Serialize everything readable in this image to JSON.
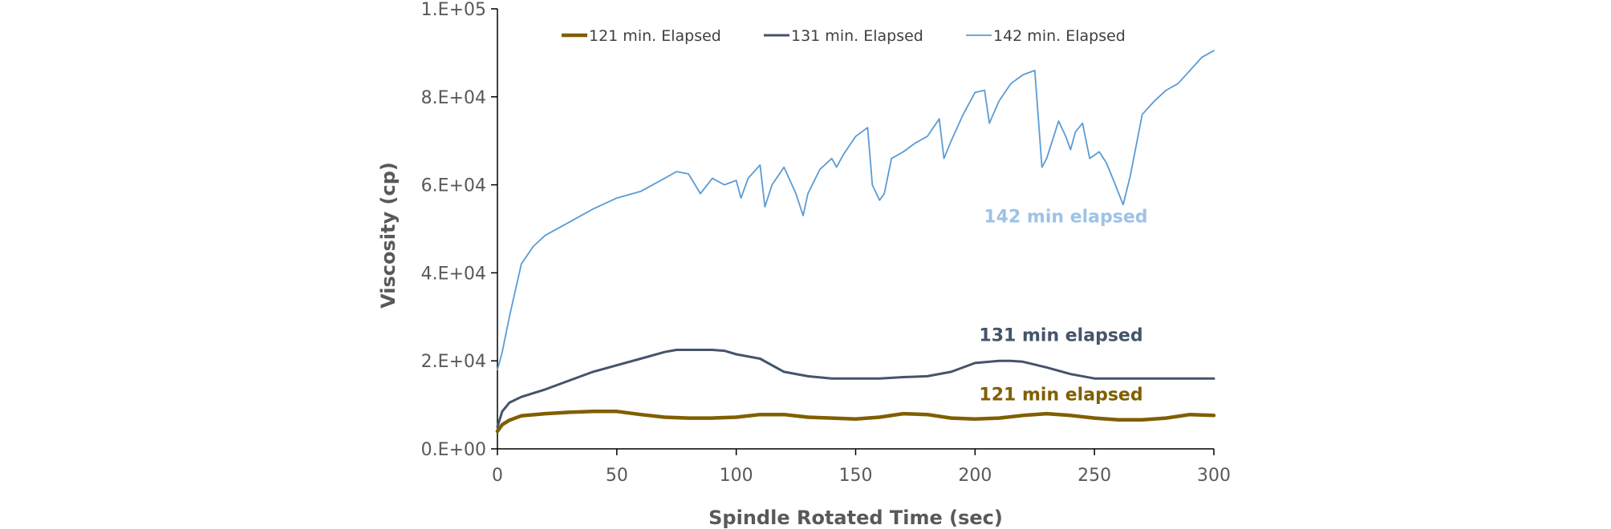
{
  "chart_data": {
    "type": "line",
    "title": "",
    "xlabel": "Spindle Rotated Time (sec)",
    "ylabel": "Viscosity (cp)",
    "xlim": [
      0,
      300
    ],
    "ylim": [
      0,
      100000
    ],
    "x_ticks": [
      0,
      50,
      100,
      150,
      200,
      250,
      300
    ],
    "x_tick_labels": [
      "0",
      "50",
      "100",
      "150",
      "200",
      "250",
      "300"
    ],
    "y_ticks": [
      0,
      20000,
      40000,
      60000,
      80000,
      100000
    ],
    "y_tick_labels": [
      "0.E+00",
      "2.E+04",
      "4.E+04",
      "6.E+04",
      "8.E+04",
      "1.E+05"
    ],
    "grid": false,
    "legend_position": "top",
    "series": [
      {
        "name": "121 min. Elapsed",
        "color": "#7f5f00",
        "stroke": "thick",
        "points": [
          [
            0,
            4000
          ],
          [
            2,
            5500
          ],
          [
            5,
            6500
          ],
          [
            10,
            7500
          ],
          [
            20,
            8000
          ],
          [
            30,
            8300
          ],
          [
            40,
            8500
          ],
          [
            50,
            8500
          ],
          [
            60,
            7800
          ],
          [
            70,
            7200
          ],
          [
            80,
            7000
          ],
          [
            90,
            7000
          ],
          [
            100,
            7200
          ],
          [
            110,
            7800
          ],
          [
            120,
            7800
          ],
          [
            130,
            7200
          ],
          [
            140,
            7000
          ],
          [
            150,
            6800
          ],
          [
            160,
            7200
          ],
          [
            170,
            8000
          ],
          [
            180,
            7800
          ],
          [
            190,
            7000
          ],
          [
            200,
            6800
          ],
          [
            210,
            7000
          ],
          [
            220,
            7600
          ],
          [
            230,
            8000
          ],
          [
            240,
            7600
          ],
          [
            250,
            7000
          ],
          [
            260,
            6600
          ],
          [
            270,
            6600
          ],
          [
            280,
            7000
          ],
          [
            290,
            7800
          ],
          [
            300,
            7600
          ]
        ]
      },
      {
        "name": "131 min. Elapsed",
        "color": "#44546a",
        "stroke": "medium",
        "points": [
          [
            0,
            5000
          ],
          [
            2,
            8500
          ],
          [
            5,
            10500
          ],
          [
            10,
            11800
          ],
          [
            20,
            13500
          ],
          [
            30,
            15500
          ],
          [
            40,
            17500
          ],
          [
            50,
            19000
          ],
          [
            60,
            20500
          ],
          [
            70,
            22000
          ],
          [
            75,
            22500
          ],
          [
            80,
            22500
          ],
          [
            90,
            22500
          ],
          [
            95,
            22300
          ],
          [
            100,
            21500
          ],
          [
            110,
            20500
          ],
          [
            120,
            17500
          ],
          [
            130,
            16500
          ],
          [
            140,
            16000
          ],
          [
            150,
            16000
          ],
          [
            160,
            16000
          ],
          [
            170,
            16300
          ],
          [
            180,
            16500
          ],
          [
            190,
            17500
          ],
          [
            200,
            19500
          ],
          [
            210,
            20000
          ],
          [
            215,
            20000
          ],
          [
            220,
            19800
          ],
          [
            230,
            18500
          ],
          [
            240,
            17000
          ],
          [
            250,
            16000
          ],
          [
            260,
            16000
          ],
          [
            270,
            16000
          ],
          [
            280,
            16000
          ],
          [
            290,
            16000
          ],
          [
            300,
            16000
          ]
        ]
      },
      {
        "name": "142 min. Elapsed",
        "color": "#5b9bd5",
        "stroke": "thin",
        "points": [
          [
            0,
            18000
          ],
          [
            2,
            22000
          ],
          [
            5,
            30000
          ],
          [
            10,
            42000
          ],
          [
            15,
            46000
          ],
          [
            20,
            48500
          ],
          [
            30,
            51500
          ],
          [
            40,
            54500
          ],
          [
            50,
            57000
          ],
          [
            60,
            58500
          ],
          [
            70,
            61500
          ],
          [
            75,
            63000
          ],
          [
            80,
            62500
          ],
          [
            85,
            58000
          ],
          [
            90,
            61500
          ],
          [
            95,
            60000
          ],
          [
            100,
            61000
          ],
          [
            102,
            57000
          ],
          [
            105,
            61500
          ],
          [
            110,
            64500
          ],
          [
            112,
            55000
          ],
          [
            115,
            60000
          ],
          [
            120,
            64000
          ],
          [
            125,
            58000
          ],
          [
            128,
            53000
          ],
          [
            130,
            58000
          ],
          [
            135,
            63500
          ],
          [
            140,
            66000
          ],
          [
            142,
            64000
          ],
          [
            145,
            67000
          ],
          [
            150,
            71000
          ],
          [
            155,
            73000
          ],
          [
            157,
            60000
          ],
          [
            160,
            56500
          ],
          [
            162,
            58000
          ],
          [
            165,
            66000
          ],
          [
            170,
            67500
          ],
          [
            175,
            69500
          ],
          [
            180,
            71000
          ],
          [
            185,
            75000
          ],
          [
            187,
            66000
          ],
          [
            190,
            70000
          ],
          [
            195,
            76000
          ],
          [
            200,
            81000
          ],
          [
            204,
            81500
          ],
          [
            206,
            74000
          ],
          [
            210,
            79000
          ],
          [
            215,
            83000
          ],
          [
            220,
            85000
          ],
          [
            225,
            86000
          ],
          [
            228,
            64000
          ],
          [
            230,
            66000
          ],
          [
            235,
            74500
          ],
          [
            238,
            71000
          ],
          [
            240,
            68000
          ],
          [
            242,
            72000
          ],
          [
            245,
            74000
          ],
          [
            248,
            66000
          ],
          [
            252,
            67500
          ],
          [
            255,
            65000
          ],
          [
            258,
            61000
          ],
          [
            262,
            55500
          ],
          [
            265,
            62000
          ],
          [
            270,
            76000
          ],
          [
            275,
            79000
          ],
          [
            280,
            81500
          ],
          [
            285,
            83000
          ],
          [
            290,
            86000
          ],
          [
            295,
            89000
          ],
          [
            300,
            90500
          ]
        ]
      }
    ],
    "annotations": [
      {
        "text": "142 min elapsed",
        "x": 238,
        "y": 51500,
        "color": "#9dc3e6"
      },
      {
        "text": "131 min elapsed",
        "x": 236,
        "y": 24500,
        "color": "#44546a"
      },
      {
        "text": "121 min elapsed",
        "x": 236,
        "y": 11000,
        "color": "#7f5f00"
      }
    ]
  }
}
